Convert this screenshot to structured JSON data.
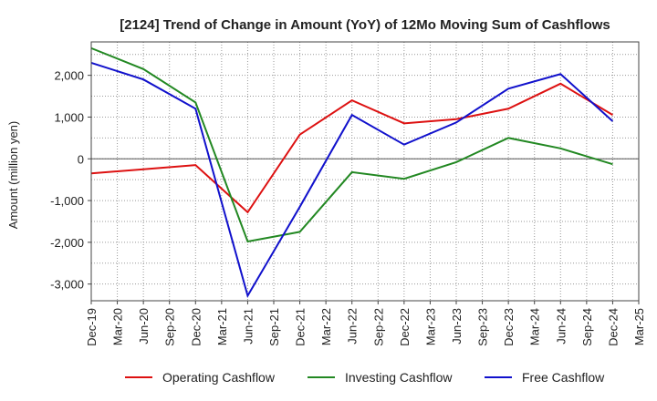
{
  "chart_data": {
    "type": "line",
    "title": "[2124]  Trend of Change in Amount (YoY) of 12Mo Moving Sum of Cashflows",
    "xlabel": "",
    "ylabel": "Amount (million yen)",
    "ylim": [
      -3400,
      2800
    ],
    "yticks": [
      -3000,
      -2000,
      -1000,
      0,
      1000,
      2000
    ],
    "ytick_labels": [
      "-3,000",
      "-2,000",
      "-1,000",
      "0",
      "1,000",
      "2,000"
    ],
    "categories": [
      "Dec-19",
      "Mar-20",
      "Jun-20",
      "Sep-20",
      "Dec-20",
      "Mar-21",
      "Jun-21",
      "Sep-21",
      "Dec-21",
      "Mar-22",
      "Jun-22",
      "Sep-22",
      "Dec-22",
      "Mar-23",
      "Jun-23",
      "Sep-23",
      "Dec-23",
      "Mar-24",
      "Jun-24",
      "Sep-24",
      "Dec-24",
      "Mar-25"
    ],
    "grid": true,
    "legend_position": "bottom",
    "series": [
      {
        "name": "Operating Cashflow",
        "color": "#dd1111",
        "x": [
          "Dec-19",
          "Jun-20",
          "Dec-20",
          "Jun-21",
          "Dec-21",
          "Jun-22",
          "Dec-22",
          "Jun-23",
          "Dec-23",
          "Jun-24",
          "Dec-24"
        ],
        "values": [
          -350,
          -250,
          -150,
          -1280,
          580,
          1400,
          850,
          950,
          1200,
          1800,
          1050
        ]
      },
      {
        "name": "Investing Cashflow",
        "color": "#228822",
        "x": [
          "Dec-19",
          "Jun-20",
          "Dec-20",
          "Jun-21",
          "Dec-21",
          "Jun-22",
          "Dec-22",
          "Jun-23",
          "Dec-23",
          "Jun-24",
          "Dec-24"
        ],
        "values": [
          2650,
          2150,
          1350,
          -1980,
          -1750,
          -320,
          -480,
          -80,
          500,
          250,
          -130
        ]
      },
      {
        "name": "Free Cashflow",
        "color": "#1111cc",
        "x": [
          "Dec-19",
          "Jun-20",
          "Dec-20",
          "Jun-21",
          "Dec-21",
          "Jun-22",
          "Dec-22",
          "Jun-23",
          "Dec-23",
          "Jun-24",
          "Dec-24"
        ],
        "values": [
          2300,
          1900,
          1200,
          -3280,
          -1150,
          1050,
          340,
          870,
          1680,
          2030,
          900
        ]
      }
    ]
  }
}
